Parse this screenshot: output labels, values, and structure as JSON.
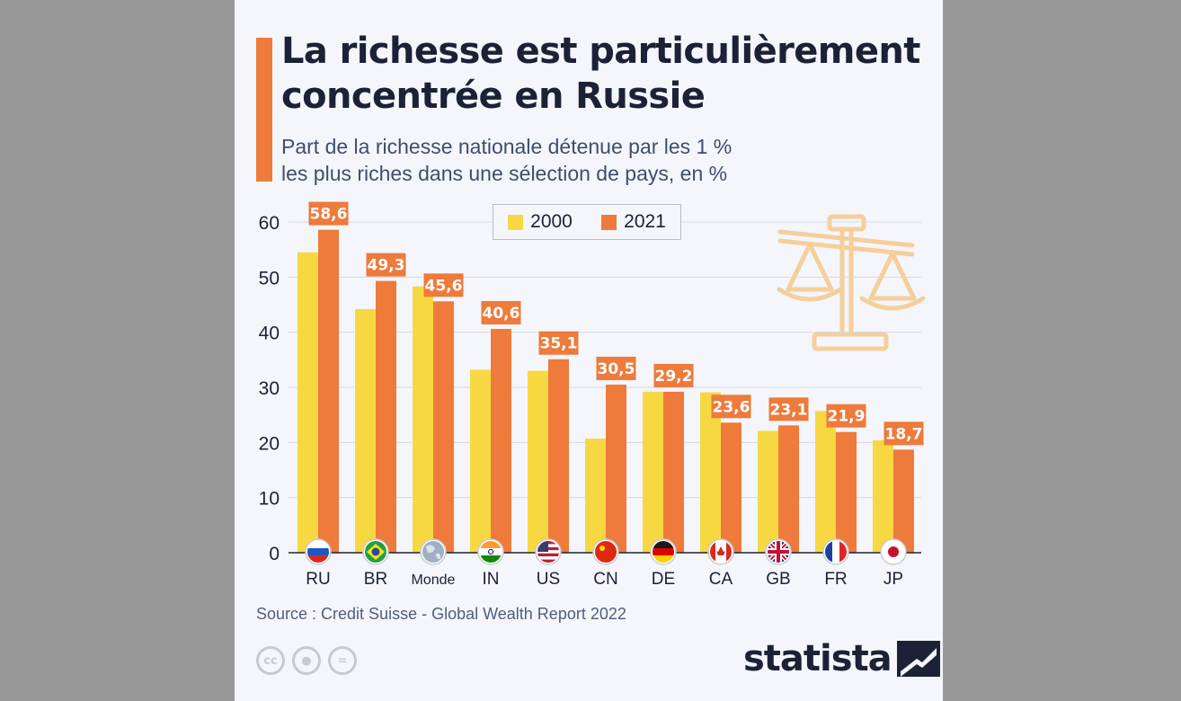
{
  "title": "La richesse est particulièrement concentrée en Russie",
  "subtitle_line1": "Part de la richesse nationale détenue par les 1 %",
  "subtitle_line2": "les plus riches dans une sélection de pays, en %",
  "source": "Source : Credit Suisse - Global Wealth Report 2022",
  "brand": "statista",
  "license_icons": [
    "cc-icon",
    "attribution-icon",
    "no-derivatives-icon"
  ],
  "colors": {
    "series_2000": "#f7d843",
    "series_2021": "#ee7a3b",
    "accent": "#ee7a3b",
    "text": "#1b2236"
  },
  "chart_data": {
    "type": "bar",
    "categories": [
      "RU",
      "BR",
      "Monde",
      "IN",
      "US",
      "CN",
      "DE",
      "CA",
      "GB",
      "FR",
      "JP"
    ],
    "flags": [
      "russia-flag-icon",
      "brazil-flag-icon",
      "globe-icon",
      "india-flag-icon",
      "usa-flag-icon",
      "china-flag-icon",
      "germany-flag-icon",
      "canada-flag-icon",
      "uk-flag-icon",
      "france-flag-icon",
      "japan-flag-icon"
    ],
    "series": [
      {
        "name": "2000",
        "values": [
          54.5,
          44.2,
          48.3,
          33.2,
          33.0,
          20.7,
          29.2,
          29.1,
          22.1,
          25.7,
          20.4
        ]
      },
      {
        "name": "2021",
        "values": [
          58.6,
          49.3,
          45.6,
          40.6,
          35.1,
          30.5,
          29.2,
          23.6,
          23.1,
          21.9,
          18.7
        ]
      }
    ],
    "value_labels": [
      "58,6",
      "49,3",
      "45,6",
      "40,6",
      "35,1",
      "30,5",
      "29,2",
      "23,6",
      "23,1",
      "21,9",
      "18,7"
    ],
    "ylim": [
      0,
      60
    ],
    "yticks": [
      0,
      10,
      20,
      30,
      40,
      50,
      60
    ],
    "grid": true,
    "legend": "top-center",
    "xlabel": "",
    "ylabel": ""
  }
}
